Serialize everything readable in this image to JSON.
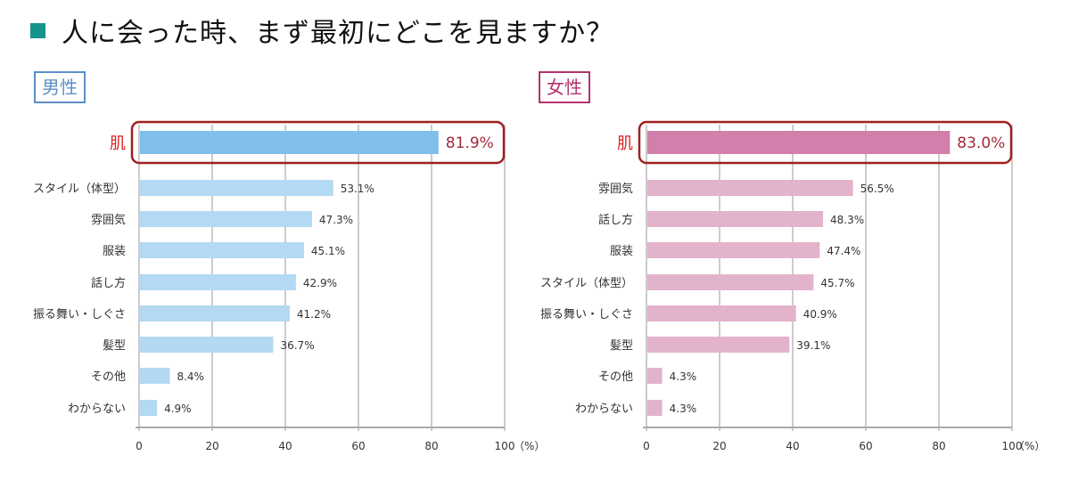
{
  "title": "人に会った時、まず最初にどこを見ますか？",
  "colors": {
    "title_marker": "#16938a",
    "male_highlight_bar": "#7fbfea",
    "male_bar": "#b3d9f3",
    "female_highlight_bar": "#d27fac",
    "female_bar": "#e3b3cc",
    "highlight_box": "#a02020",
    "highlight_label": "#e02020",
    "highlight_value": "#a32a3a",
    "grid": "#b0b0b0"
  },
  "chart_data": [
    {
      "type": "bar",
      "orientation": "horizontal",
      "title": "男性",
      "categories": [
        "肌",
        "スタイル（体型）",
        "雰囲気",
        "服装",
        "話し方",
        "振る舞い・しぐさ",
        "髪型",
        "その他",
        "わからない"
      ],
      "values": [
        81.9,
        53.1,
        47.3,
        45.1,
        42.9,
        41.2,
        36.7,
        8.4,
        4.9
      ],
      "value_labels": [
        "81.9%",
        "53.1%",
        "47.3%",
        "45.1%",
        "42.9%",
        "41.2%",
        "36.7%",
        "8.4%",
        "4.9%"
      ],
      "highlighted_category": "肌",
      "xlabel": "",
      "unit_label": "（%）",
      "xlim": [
        0,
        100
      ],
      "xticks": [
        "0",
        "20",
        "40",
        "60",
        "80",
        "100"
      ],
      "grid": true
    },
    {
      "type": "bar",
      "orientation": "horizontal",
      "title": "女性",
      "categories": [
        "肌",
        "雰囲気",
        "話し方",
        "服装",
        "スタイル（体型）",
        "振る舞い・しぐさ",
        "髪型",
        "その他",
        "わからない"
      ],
      "values": [
        83.0,
        56.5,
        48.3,
        47.4,
        45.7,
        40.9,
        39.1,
        4.3,
        4.3
      ],
      "value_labels": [
        "83.0%",
        "56.5%",
        "48.3%",
        "47.4%",
        "45.7%",
        "40.9%",
        "39.1%",
        "4.3%",
        "4.3%"
      ],
      "highlighted_category": "肌",
      "xlabel": "",
      "unit_label": "（%）",
      "xlim": [
        0,
        100
      ],
      "xticks": [
        "0",
        "20",
        "40",
        "60",
        "80",
        "100"
      ],
      "grid": true
    }
  ]
}
